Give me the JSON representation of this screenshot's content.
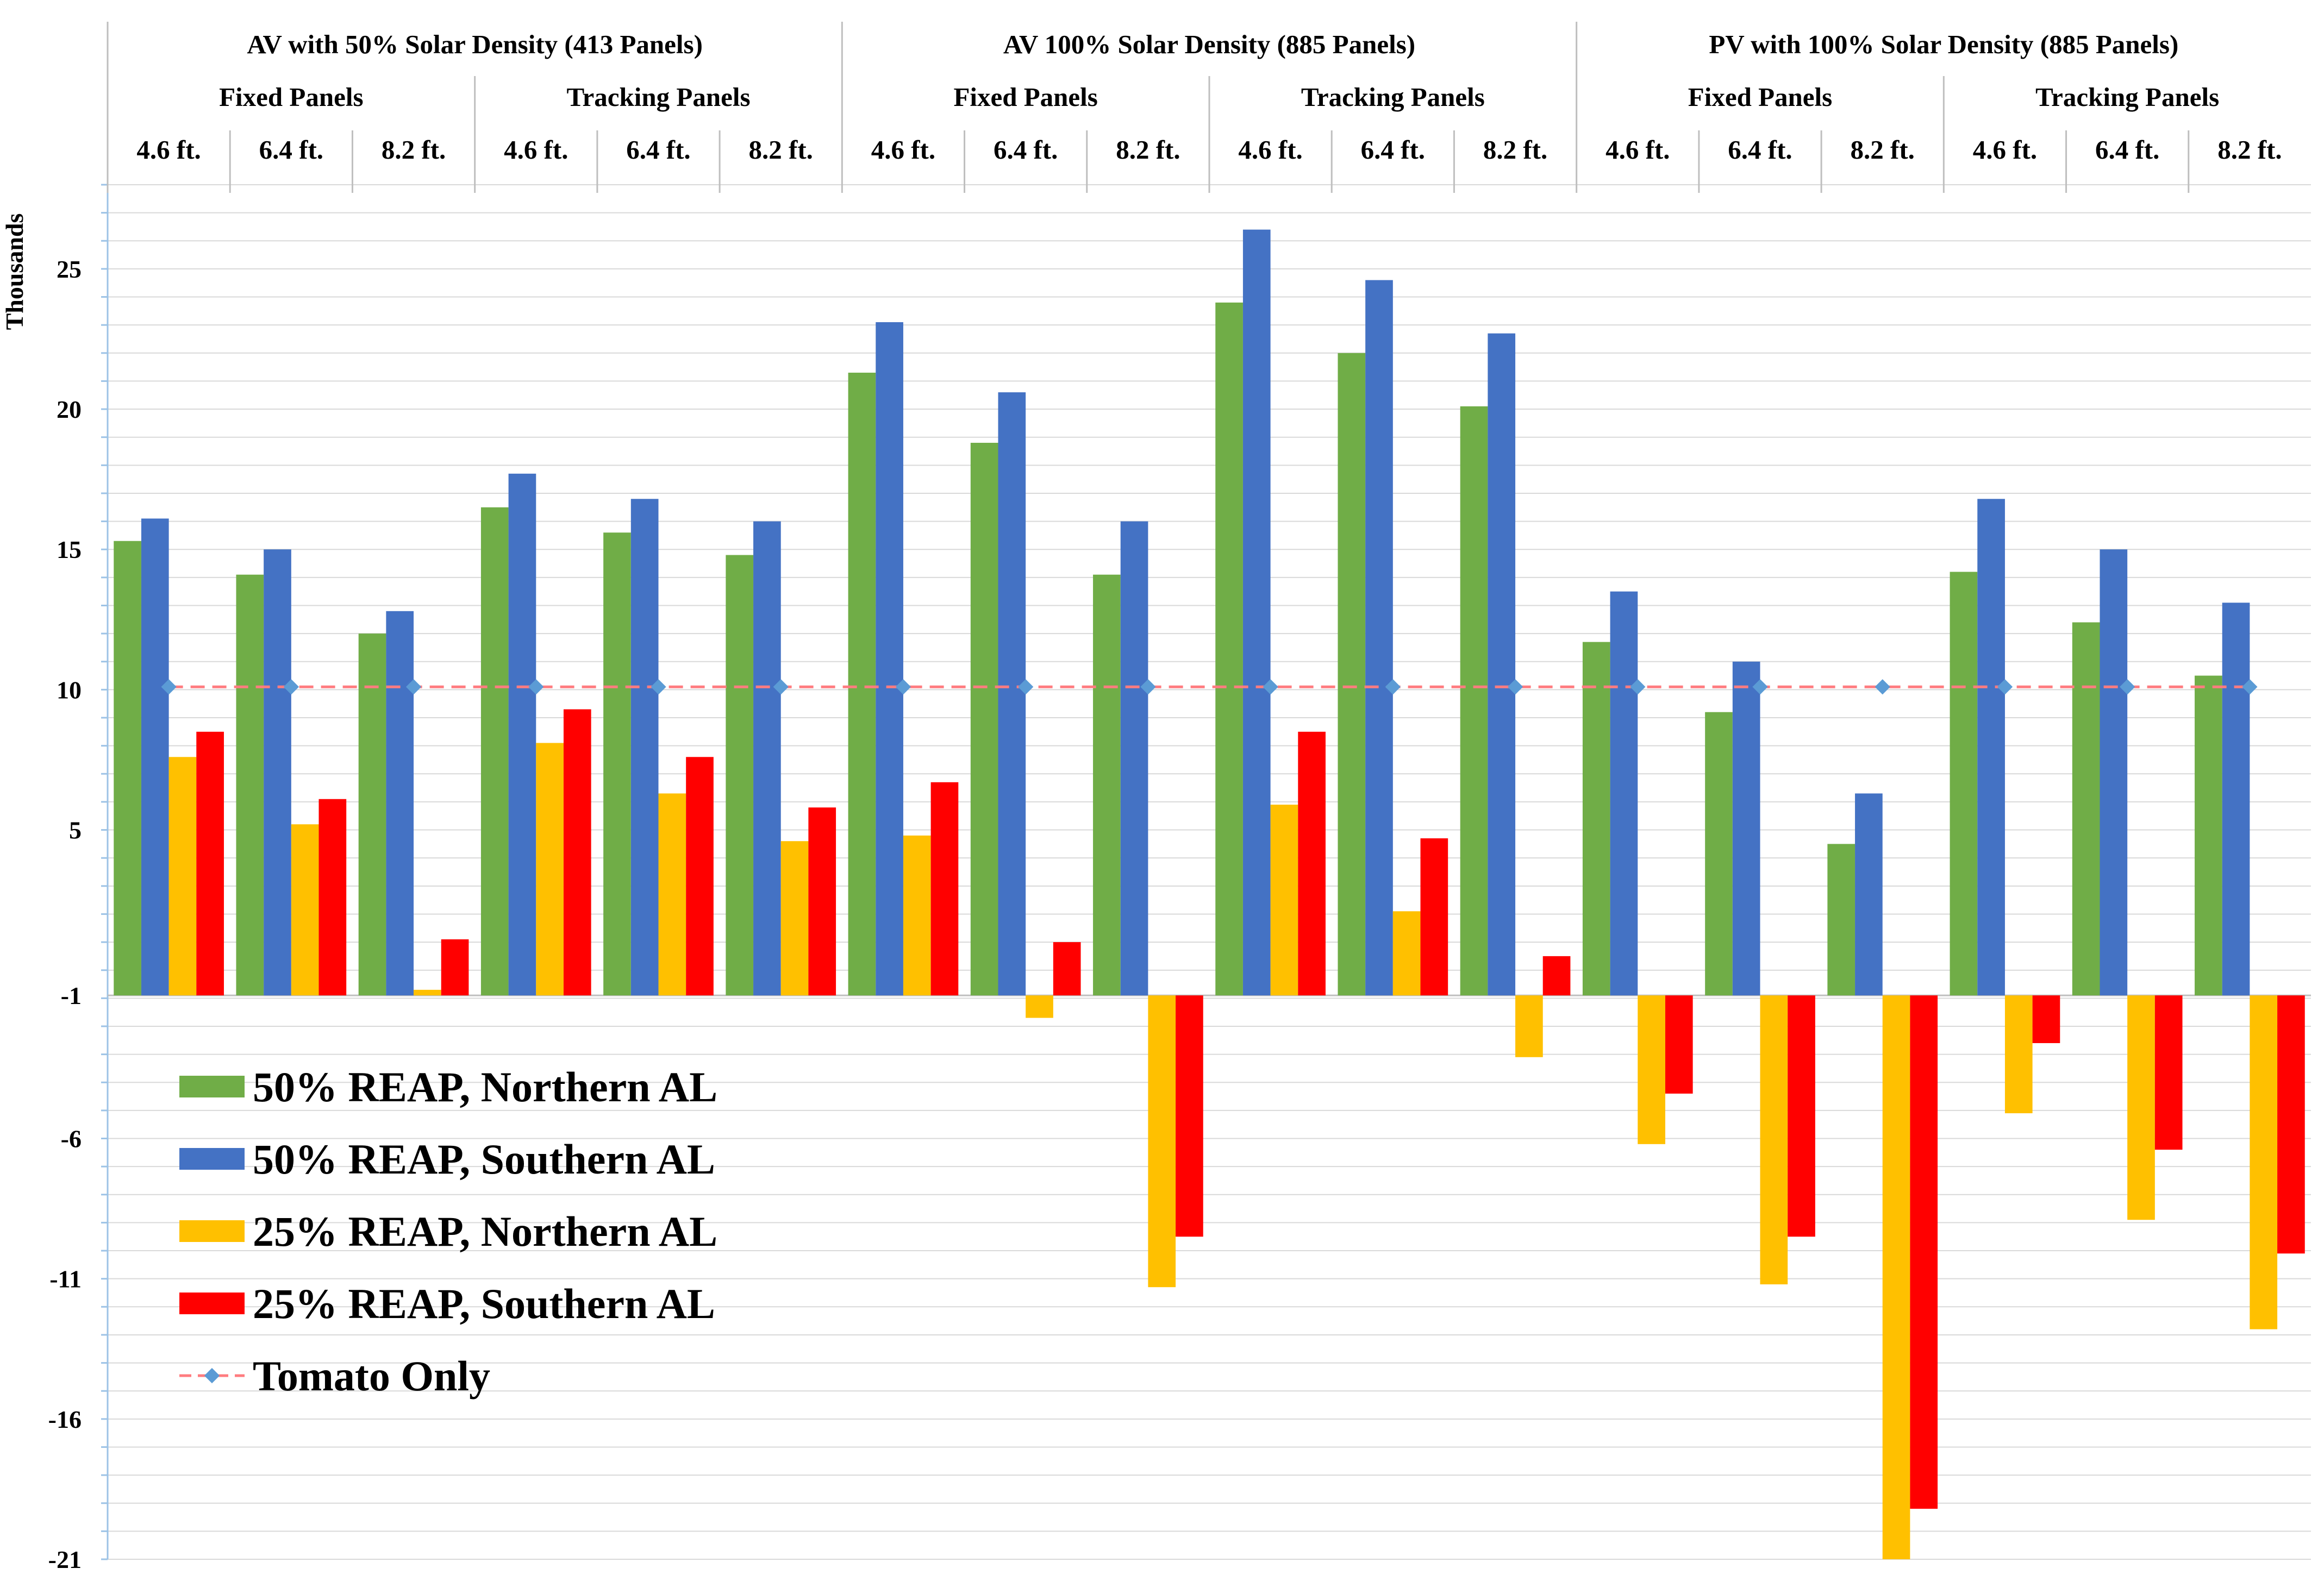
{
  "chart_data": {
    "type": "bar",
    "ylabel": "Thousands",
    "ylim": [
      -21,
      28
    ],
    "yticks": [
      25,
      20,
      15,
      10,
      5,
      -1,
      -6,
      -11,
      -16,
      -21
    ],
    "grid": true,
    "legend_position": "bottom-left",
    "groups": [
      {
        "label": "AV with 50% Solar Density (413 Panels)",
        "subgroups": [
          {
            "label": "Fixed Panels",
            "heights": [
              "4.6 ft.",
              "6.4 ft.",
              "8.2 ft."
            ]
          },
          {
            "label": "Tracking Panels",
            "heights": [
              "4.6 ft.",
              "6.4 ft.",
              "8.2 ft."
            ]
          }
        ]
      },
      {
        "label": "AV 100% Solar Density (885 Panels)",
        "subgroups": [
          {
            "label": "Fixed Panels",
            "heights": [
              "4.6 ft.",
              "6.4 ft.",
              "8.2 ft."
            ]
          },
          {
            "label": "Tracking Panels",
            "heights": [
              "4.6 ft.",
              "6.4 ft.",
              "8.2 ft."
            ]
          }
        ]
      },
      {
        "label": "PV with 100% Solar Density (885 Panels)",
        "subgroups": [
          {
            "label": "Fixed Panels",
            "heights": [
              "4.6 ft.",
              "6.4 ft.",
              "8.2 ft."
            ]
          },
          {
            "label": "Tracking Panels",
            "heights": [
              "4.6 ft.",
              "6.4 ft.",
              "8.2 ft."
            ]
          }
        ]
      }
    ],
    "series": [
      {
        "name": "50% REAP, Northern AL",
        "color": "#70ad47",
        "values": [
          15.3,
          14.1,
          12.0,
          16.5,
          15.6,
          14.8,
          21.3,
          18.8,
          14.1,
          23.8,
          22.0,
          20.1,
          11.7,
          9.2,
          4.5,
          14.2,
          12.4,
          10.5
        ]
      },
      {
        "name": "50% REAP, Southern AL",
        "color": "#4472c4",
        "values": [
          16.1,
          15.0,
          12.8,
          17.7,
          16.8,
          16.0,
          23.1,
          20.6,
          16.0,
          26.4,
          24.6,
          22.7,
          13.5,
          11.0,
          6.3,
          16.8,
          15.0,
          13.1
        ]
      },
      {
        "name": "25% REAP, Northern AL",
        "color": "#ffc000",
        "values": [
          7.6,
          5.2,
          -0.7,
          8.1,
          6.3,
          4.6,
          4.8,
          -1.7,
          -11.3,
          5.9,
          2.1,
          -3.1,
          -6.2,
          -11.2,
          -21.0,
          -5.1,
          -8.9,
          -12.8
        ]
      },
      {
        "name": "25% REAP, Southern AL",
        "color": "#ff0000",
        "values": [
          8.5,
          6.1,
          1.1,
          9.3,
          7.6,
          5.8,
          6.7,
          1.0,
          -9.5,
          8.5,
          4.7,
          0.5,
          -4.4,
          -9.5,
          -19.2,
          -2.6,
          -6.4,
          -10.1
        ]
      },
      {
        "name": "Tomato Only",
        "color": "#ff7c80",
        "marker_color": "#5b9bd5",
        "style": "dashed-line",
        "values": [
          10.1,
          10.1,
          10.1,
          10.1,
          10.1,
          10.1,
          10.1,
          10.1,
          10.1,
          10.1,
          10.1,
          10.1,
          10.1,
          10.1,
          10.1,
          10.1,
          10.1,
          10.1
        ]
      }
    ]
  }
}
